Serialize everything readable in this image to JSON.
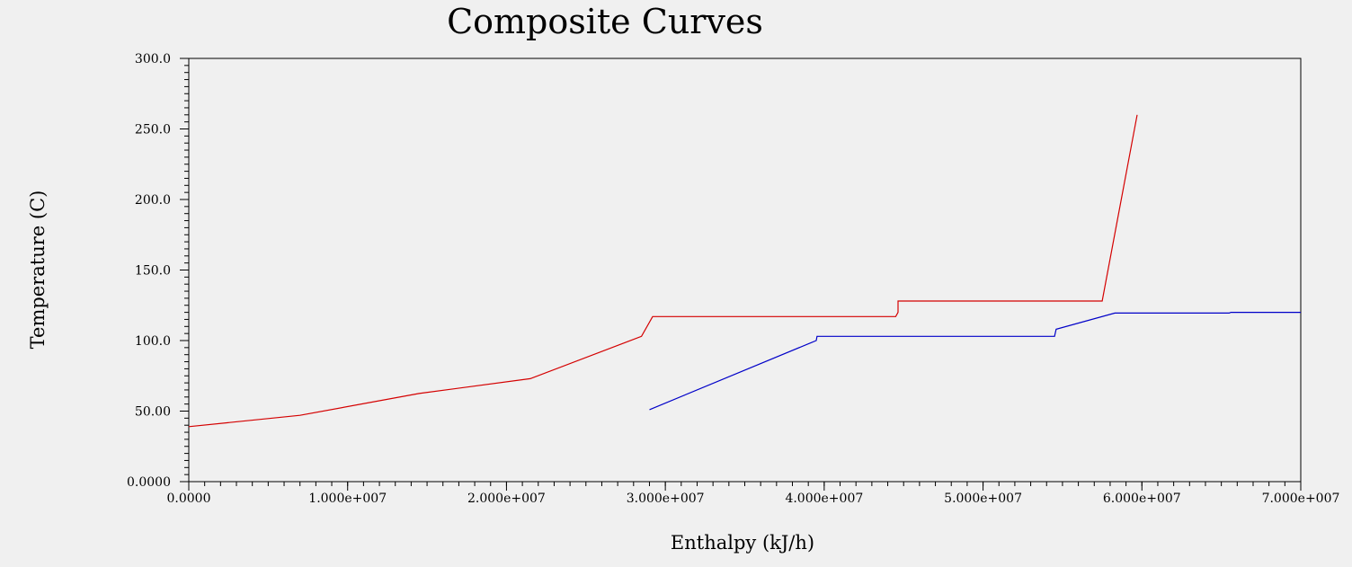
{
  "chart_data": {
    "type": "line",
    "title": "Composite Curves",
    "xlabel": "Enthalpy (kJ/h)",
    "ylabel": "Temperature (C)",
    "xlim": [
      0,
      70000000
    ],
    "ylim": [
      0,
      300
    ],
    "x_ticks": [
      0,
      10000000,
      20000000,
      30000000,
      40000000,
      50000000,
      60000000,
      70000000
    ],
    "x_tick_labels": [
      "0.0000",
      "1.000e+007",
      "2.000e+007",
      "3.000e+007",
      "4.000e+007",
      "5.000e+007",
      "6.000e+007",
      "7.000e+007"
    ],
    "y_ticks": [
      0,
      50,
      100,
      150,
      200,
      250,
      300
    ],
    "y_tick_labels": [
      "0.0000",
      "50.00",
      "100.0",
      "150.0",
      "200.0",
      "250.0",
      "300.0"
    ],
    "grid": false,
    "series": [
      {
        "color": "#d40000",
        "points": [
          [
            0,
            39
          ],
          [
            7000000,
            47
          ],
          [
            14500000,
            62.5
          ],
          [
            21500000,
            73
          ],
          [
            28500000,
            103
          ],
          [
            29200000,
            117
          ],
          [
            44500000,
            117
          ],
          [
            44650000,
            120
          ],
          [
            44650000,
            128
          ],
          [
            57500000,
            128
          ],
          [
            59700000,
            260
          ]
        ]
      },
      {
        "color": "#0000c8",
        "points": [
          [
            29000000,
            51
          ],
          [
            39500000,
            100
          ],
          [
            39550000,
            103
          ],
          [
            54500000,
            103
          ],
          [
            54600000,
            108
          ],
          [
            58300000,
            119.5
          ],
          [
            65500000,
            119.5
          ],
          [
            65600000,
            120
          ],
          [
            70000000,
            120
          ]
        ]
      }
    ]
  }
}
